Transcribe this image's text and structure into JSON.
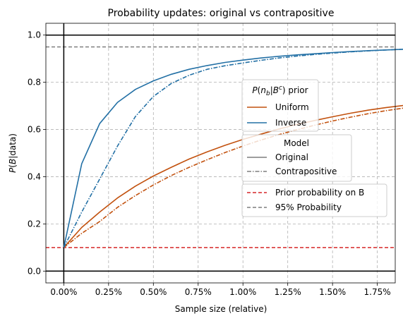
{
  "chart_data": {
    "type": "line",
    "title": "Probability updates: original vs contrapositive",
    "xlabel": "Sample size (relative)",
    "ylabel": "P(B|data)",
    "xlim": [
      -0.1,
      1.85
    ],
    "ylim": [
      -0.05,
      1.05
    ],
    "x_ticks": [
      0.0,
      0.25,
      0.5,
      0.75,
      1.0,
      1.25,
      1.5,
      1.75
    ],
    "x_tick_labels": [
      "0.00%",
      "0.25%",
      "0.50%",
      "0.75%",
      "1.00%",
      "1.25%",
      "1.50%",
      "1.75%"
    ],
    "y_ticks": [
      0.0,
      0.2,
      0.4,
      0.6,
      0.8,
      1.0
    ],
    "y_tick_labels": [
      "0.0",
      "0.2",
      "0.4",
      "0.6",
      "0.8",
      "1.0"
    ],
    "grid": true,
    "colors": {
      "uniform": "#c2510e",
      "inverse": "#2370a5",
      "prior": "#d62728",
      "p95": "#7f7f7f"
    },
    "x": [
      0.0,
      0.1,
      0.2,
      0.3,
      0.4,
      0.5,
      0.6,
      0.7,
      0.8,
      0.9,
      1.0,
      1.1,
      1.2,
      1.3,
      1.4,
      1.5,
      1.6,
      1.7,
      1.8,
      1.9
    ],
    "series": [
      {
        "key": "uniform_original",
        "color": "#c2510e",
        "dash": "solid",
        "values": [
          0.1,
          0.185,
          0.25,
          0.31,
          0.36,
          0.403,
          0.44,
          0.475,
          0.505,
          0.533,
          0.558,
          0.58,
          0.602,
          0.621,
          0.638,
          0.654,
          0.669,
          0.682,
          0.693,
          0.702
        ]
      },
      {
        "key": "uniform_contrapositive",
        "color": "#c2510e",
        "dash": "dashdot",
        "values": [
          0.1,
          0.16,
          0.21,
          0.27,
          0.32,
          0.365,
          0.405,
          0.44,
          0.472,
          0.502,
          0.53,
          0.555,
          0.578,
          0.599,
          0.618,
          0.636,
          0.652,
          0.667,
          0.68,
          0.691
        ]
      },
      {
        "key": "inverse_original",
        "color": "#2370a5",
        "dash": "solid",
        "values": [
          0.1,
          0.455,
          0.625,
          0.715,
          0.77,
          0.806,
          0.834,
          0.855,
          0.871,
          0.884,
          0.894,
          0.903,
          0.91,
          0.916,
          0.921,
          0.926,
          0.93,
          0.934,
          0.937,
          0.94
        ]
      },
      {
        "key": "inverse_contrapositive",
        "color": "#2370a5",
        "dash": "dashdot",
        "values": [
          0.1,
          0.25,
          0.39,
          0.53,
          0.655,
          0.74,
          0.795,
          0.83,
          0.855,
          0.87,
          0.882,
          0.893,
          0.903,
          0.911,
          0.918,
          0.924,
          0.929,
          0.933,
          0.937,
          0.94
        ]
      }
    ],
    "reference_lines": {
      "prior": {
        "y": 0.1,
        "color": "#d62728",
        "dash": "dashed"
      },
      "p95": {
        "y": 0.95,
        "color": "#7f7f7f",
        "dash": "dashed"
      },
      "h0": {
        "y": 0.0,
        "color": "#000000"
      },
      "h1": {
        "y": 1.0,
        "color": "#000000"
      },
      "v0": {
        "x": 0.0,
        "color": "#000000"
      }
    },
    "legends": {
      "prior_group": {
        "title": "P(n_b|B^c) prior",
        "entries": [
          {
            "label": "Uniform",
            "color": "#c2510e",
            "dash": "solid"
          },
          {
            "label": "Inverse",
            "color": "#2370a5",
            "dash": "solid"
          }
        ],
        "placement": "center-right"
      },
      "model_group": {
        "title": "Model",
        "entries": [
          {
            "label": "Original",
            "color": "#7f7f7f",
            "dash": "solid"
          },
          {
            "label": "Contrapositive",
            "color": "#7f7f7f",
            "dash": "dashdot"
          }
        ],
        "placement": "center-right"
      },
      "reference_group": {
        "entries": [
          {
            "label": "Prior probability on B",
            "color": "#d62728",
            "dash": "dashed"
          },
          {
            "label": "95% Probability",
            "color": "#7f7f7f",
            "dash": "dashed"
          }
        ],
        "placement": "lower-right"
      }
    }
  }
}
